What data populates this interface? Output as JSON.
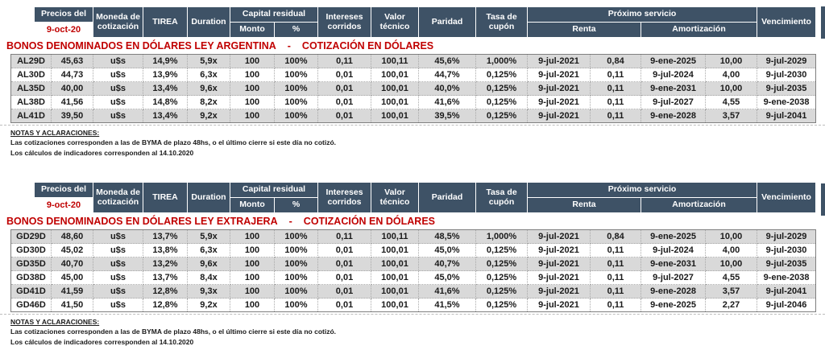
{
  "colors": {
    "header_bg": "#3E5266",
    "accent_red": "#C00000",
    "row_stripe": "#D9D9D9"
  },
  "table_header": {
    "precios_label": "Precios del",
    "fecha": "9-oct-20",
    "moneda": "Moneda de cotización",
    "tirea": "TIREA",
    "duration": "Duration",
    "capital_residual": "Capital residual",
    "monto": "Monto",
    "pct": "%",
    "intereses": "Intereses corridos",
    "valor_tecnico": "Valor técnico",
    "paridad": "Paridad",
    "tasa_cupon": "Tasa de cupón",
    "proximo_servicio": "Próximo servicio",
    "renta": "Renta",
    "amortizacion": "Amortización",
    "vencimiento": "Vencimiento"
  },
  "sections": [
    {
      "title_left": "BONOS DENOMINADOS EN DÓLARES LEY ARGENTINA",
      "title_sep": "-",
      "title_right": "COTIZACIÓN EN DÓLARES",
      "rows": [
        [
          "AL29D",
          "45,63",
          "u$s",
          "14,9%",
          "5,9x",
          "100",
          "100%",
          "0,11",
          "100,11",
          "45,6%",
          "1,000%",
          "9-jul-2021",
          "0,84",
          "9-ene-2025",
          "10,00",
          "9-jul-2029"
        ],
        [
          "AL30D",
          "44,73",
          "u$s",
          "13,9%",
          "6,3x",
          "100",
          "100%",
          "0,01",
          "100,01",
          "44,7%",
          "0,125%",
          "9-jul-2021",
          "0,11",
          "9-jul-2024",
          "4,00",
          "9-jul-2030"
        ],
        [
          "AL35D",
          "40,00",
          "u$s",
          "13,4%",
          "9,6x",
          "100",
          "100%",
          "0,01",
          "100,01",
          "40,0%",
          "0,125%",
          "9-jul-2021",
          "0,11",
          "9-ene-2031",
          "10,00",
          "9-jul-2035"
        ],
        [
          "AL38D",
          "41,56",
          "u$s",
          "14,8%",
          "8,2x",
          "100",
          "100%",
          "0,01",
          "100,01",
          "41,6%",
          "0,125%",
          "9-jul-2021",
          "0,11",
          "9-jul-2027",
          "4,55",
          "9-ene-2038"
        ],
        [
          "AL41D",
          "39,50",
          "u$s",
          "13,4%",
          "9,2x",
          "100",
          "100%",
          "0,01",
          "100,01",
          "39,5%",
          "0,125%",
          "9-jul-2021",
          "0,11",
          "9-ene-2028",
          "3,57",
          "9-jul-2041"
        ]
      ]
    },
    {
      "title_left": "BONOS DENOMINADOS EN DÓLARES LEY EXTRAJERA",
      "title_sep": "-",
      "title_right": "COTIZACIÓN EN DÓLARES",
      "rows": [
        [
          "GD29D",
          "48,60",
          "u$s",
          "13,7%",
          "5,9x",
          "100",
          "100%",
          "0,11",
          "100,11",
          "48,5%",
          "1,000%",
          "9-jul-2021",
          "0,84",
          "9-ene-2025",
          "10,00",
          "9-jul-2029"
        ],
        [
          "GD30D",
          "45,02",
          "u$s",
          "13,8%",
          "6,3x",
          "100",
          "100%",
          "0,01",
          "100,01",
          "45,0%",
          "0,125%",
          "9-jul-2021",
          "0,11",
          "9-jul-2024",
          "4,00",
          "9-jul-2030"
        ],
        [
          "GD35D",
          "40,70",
          "u$s",
          "13,2%",
          "9,6x",
          "100",
          "100%",
          "0,01",
          "100,01",
          "40,7%",
          "0,125%",
          "9-jul-2021",
          "0,11",
          "9-ene-2031",
          "10,00",
          "9-jul-2035"
        ],
        [
          "GD38D",
          "45,00",
          "u$s",
          "13,7%",
          "8,4x",
          "100",
          "100%",
          "0,01",
          "100,01",
          "45,0%",
          "0,125%",
          "9-jul-2021",
          "0,11",
          "9-jul-2027",
          "4,55",
          "9-ene-2038"
        ],
        [
          "GD41D",
          "41,59",
          "u$s",
          "12,8%",
          "9,3x",
          "100",
          "100%",
          "0,01",
          "100,01",
          "41,6%",
          "0,125%",
          "9-jul-2021",
          "0,11",
          "9-ene-2028",
          "3,57",
          "9-jul-2041"
        ],
        [
          "GD46D",
          "41,50",
          "u$s",
          "12,8%",
          "9,2x",
          "100",
          "100%",
          "0,01",
          "100,01",
          "41,5%",
          "0,125%",
          "9-jul-2021",
          "0,11",
          "9-ene-2025",
          "2,27",
          "9-jul-2046"
        ]
      ]
    }
  ],
  "notes": {
    "heading": "NOTAS Y ACLARACIONES:",
    "lines": [
      "Las cotizaciones corresponden a las de BYMA de plazo 48hs, o el último cierre si este día no cotizó.",
      "Los cálculos de indicadores corresponden al 14.10.2020"
    ]
  }
}
